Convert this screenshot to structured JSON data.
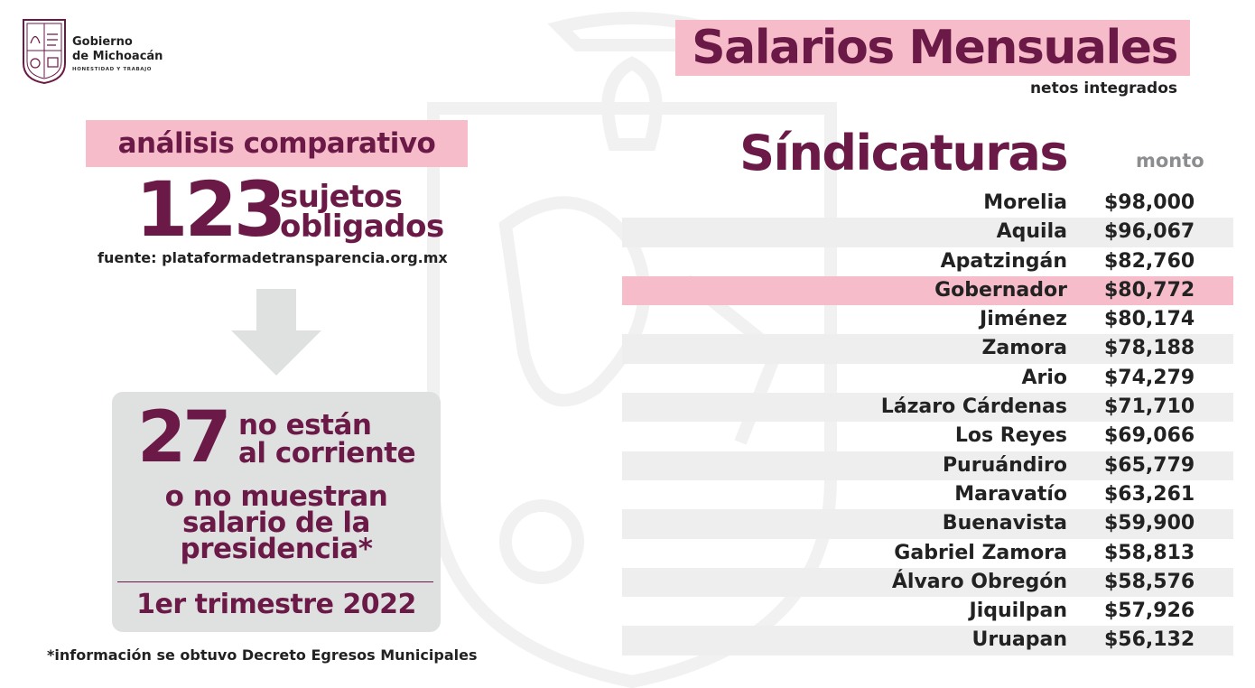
{
  "logo": {
    "line1": "Gobierno",
    "line2": "de Michoacán",
    "motto": "HONESTIDAD Y TRABAJO"
  },
  "left": {
    "analisis": "análisis comparativo",
    "big_number": "123",
    "sujetos_line1": "sujetos",
    "sujetos_line2": "obligados",
    "fuente": "fuente: plataformadetransparencia.org.mx",
    "big_number2": "27",
    "noestan_line1": "no están",
    "noestan_line2": "al corriente",
    "nomuestran_line1": "o no muestran",
    "nomuestran_line2": "salario de la",
    "nomuestran_line3": "presidencia*",
    "trimestre": "1er trimestre 2022",
    "footnote": "*información se obtuvo Decreto Egresos Municipales"
  },
  "right": {
    "title": "Salarios Mensuales",
    "subtitle": "netos integrados",
    "heading": "Síndicaturas",
    "column_label": "monto",
    "rows": [
      {
        "name": "Morelia",
        "value": "$98,000"
      },
      {
        "name": "Aquila",
        "value": "$96,067"
      },
      {
        "name": "Apatzingán",
        "value": "$82,760"
      },
      {
        "name": "Gobernador",
        "value": "$80,772"
      },
      {
        "name": "Jiménez",
        "value": "$80,174"
      },
      {
        "name": "Zamora",
        "value": "$78,188"
      },
      {
        "name": "Ario",
        "value": "$74,279"
      },
      {
        "name": "Lázaro Cárdenas",
        "value": "$71,710"
      },
      {
        "name": "Los Reyes",
        "value": "$69,066"
      },
      {
        "name": "Puruándiro",
        "value": "$65,779"
      },
      {
        "name": "Maravatío",
        "value": "$63,261"
      },
      {
        "name": "Buenavista",
        "value": "$59,900"
      },
      {
        "name": "Gabriel Zamora",
        "value": "$58,813"
      },
      {
        "name": "Álvaro Obregón",
        "value": "$58,576"
      },
      {
        "name": "Jiquilpan",
        "value": "$57,926"
      },
      {
        "name": "Uruapan",
        "value": "$56,132"
      }
    ]
  },
  "colors": {
    "accent": "#6b1a47",
    "pink": "#f6bcc9",
    "grey_box": "#dfe1e1",
    "row_alt": "#eeeeee"
  }
}
